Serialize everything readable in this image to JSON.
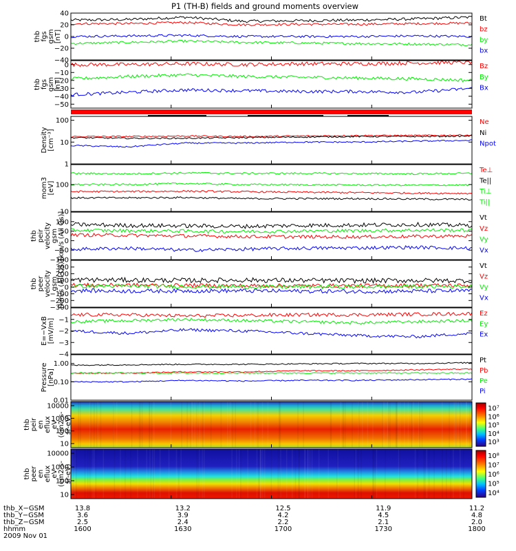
{
  "title": "P1 (TH-B) fields and ground moments overview",
  "colors": {
    "black": "#000000",
    "red": "#ff0000",
    "green": "#00ee00",
    "blue": "#0000ff"
  },
  "chart_data": [
    {
      "type": "line",
      "ylabel": [
        "thb",
        "fgs",
        "gsm",
        "[nT]"
      ],
      "ylim": [
        -40,
        40
      ],
      "yticks": [
        "40",
        "20",
        "0",
        "−20",
        "−40"
      ],
      "ytick_values": [
        40,
        20,
        0,
        -20,
        -40
      ],
      "series": [
        {
          "name": "Bt",
          "values": [
            28,
            29,
            33,
            26,
            27,
            28,
            30,
            33
          ]
        },
        {
          "name": "bz",
          "values": [
            22,
            22,
            24,
            20,
            21,
            21,
            22,
            23
          ]
        },
        {
          "name": "by",
          "values": [
            -12,
            -10,
            -8,
            -10,
            -11,
            -12,
            -13,
            -14
          ]
        },
        {
          "name": "bx",
          "values": [
            0,
            1,
            2,
            0,
            0,
            0,
            1,
            0
          ]
        }
      ]
    },
    {
      "type": "line",
      "ylabel": [
        "thb",
        "fgs",
        "gsm",
        "[nT]"
      ],
      "ylim": [
        -55,
        5
      ],
      "yticks": [
        "0",
        "−10",
        "−20",
        "−30",
        "−40",
        "−50"
      ],
      "ytick_values": [
        0,
        -10,
        -20,
        -30,
        -40,
        -50
      ],
      "series": [
        {
          "name": "Bz",
          "values": [
            0,
            0,
            1,
            0,
            1,
            1,
            2,
            3
          ]
        },
        {
          "name": "By",
          "values": [
            -18,
            -15,
            -13,
            -15,
            -16,
            -17,
            -18,
            -20
          ]
        },
        {
          "name": "Bx",
          "values": [
            -38,
            -35,
            -32,
            -33,
            -34,
            -34,
            -35,
            -30
          ]
        }
      ]
    },
    {
      "type": "line",
      "log": true,
      "ylabel": [
        "Density",
        "[cm⁻³]"
      ],
      "ylim": [
        1,
        150
      ],
      "yticks": [
        "100",
        "10",
        "1"
      ],
      "ytick_values": [
        100,
        10,
        1
      ],
      "series": [
        {
          "name": "Ne",
          "values": [
            18,
            18,
            19,
            18,
            19,
            20,
            20,
            21
          ]
        },
        {
          "name": "Ni",
          "values": [
            16,
            15,
            15,
            16,
            17,
            18,
            18,
            19
          ]
        },
        {
          "name": "Npot",
          "values": [
            7,
            6,
            9,
            9,
            10,
            10,
            11,
            12
          ]
        }
      ]
    },
    {
      "type": "line",
      "log": true,
      "ylabel": [
        "mom3",
        "[eV]"
      ],
      "ylim": [
        10,
        550
      ],
      "yticks": [
        "100",
        "10"
      ],
      "ytick_values": [
        100,
        10
      ],
      "series": [
        {
          "name": "Te⊥",
          "values": [
            55,
            55,
            57,
            54,
            52,
            50,
            48,
            47
          ]
        },
        {
          "name": "Te||",
          "values": [
            32,
            32,
            33,
            30,
            30,
            30,
            29,
            28
          ]
        },
        {
          "name": "Ti⊥",
          "values": [
            260,
            250,
            270,
            260,
            260,
            255,
            250,
            260
          ]
        },
        {
          "name": "Ti||",
          "values": [
            100,
            100,
            110,
            100,
            98,
            96,
            95,
            96
          ]
        }
      ]
    },
    {
      "type": "line",
      "ylabel": [
        "thb",
        "peir",
        "velocity",
        "gsm",
        "[km/s (All Qs)]"
      ],
      "ylim": [
        -100,
        150
      ],
      "yticks": [
        "100",
        "50",
        "0",
        "−50",
        "−100"
      ],
      "ytick_values": [
        100,
        50,
        0,
        -50,
        -100
      ],
      "series": [
        {
          "name": "Vt",
          "values": [
            85,
            80,
            78,
            75,
            80,
            82,
            85,
            80
          ]
        },
        {
          "name": "Vz",
          "values": [
            30,
            28,
            25,
            22,
            20,
            20,
            22,
            25
          ]
        },
        {
          "name": "Vy",
          "values": [
            55,
            52,
            50,
            48,
            50,
            52,
            55,
            55
          ]
        },
        {
          "name": "Vx",
          "values": [
            -45,
            -40,
            -50,
            -45,
            -40,
            -38,
            -35,
            -40
          ]
        }
      ]
    },
    {
      "type": "line",
      "ylabel": [
        "thb",
        "peer",
        "velocity",
        "gsm",
        "[km/s (All Qs)]"
      ],
      "ylim": [
        -300,
        400
      ],
      "yticks": [
        "300",
        "200",
        "100",
        "0",
        "−100",
        "−200",
        "−300"
      ],
      "ytick_values": [
        300,
        200,
        100,
        0,
        -100,
        -200,
        -300
      ],
      "series": [
        {
          "name": "Vt",
          "values": [
            110,
            105,
            100,
            105,
            100,
            95,
            100,
            95
          ]
        },
        {
          "name": "Vz",
          "values": [
            30,
            30,
            25,
            20,
            20,
            20,
            25,
            25
          ]
        },
        {
          "name": "Vy",
          "values": [
            15,
            15,
            10,
            5,
            5,
            5,
            10,
            10
          ]
        },
        {
          "name": "Vx",
          "values": [
            -50,
            -60,
            -55,
            -55,
            -60,
            -65,
            -60,
            -55
          ]
        }
      ]
    },
    {
      "type": "line",
      "ylabel": [
        "E=−VxB",
        "[mV/m]"
      ],
      "ylim": [
        -4,
        0
      ],
      "yticks": [
        "−1",
        "−2",
        "−3",
        "−4"
      ],
      "ytick_values": [
        -1,
        -2,
        -3,
        -4
      ],
      "series": [
        {
          "name": "Ez",
          "values": [
            -0.6,
            -0.6,
            -0.7,
            -0.65,
            -0.6,
            -0.6,
            -0.55,
            -0.5
          ]
        },
        {
          "name": "Ey",
          "values": [
            -1.2,
            -1.1,
            -1.0,
            -1.1,
            -1.2,
            -1.3,
            -1.2,
            -1.1
          ]
        },
        {
          "name": "Ex",
          "values": [
            -2.0,
            -2.2,
            -1.9,
            -2.0,
            -2.2,
            -2.4,
            -2.5,
            -2.2
          ]
        }
      ]
    },
    {
      "type": "line",
      "log": true,
      "ylabel": [
        "Pressure",
        "[nPa]"
      ],
      "ylim": [
        0.01,
        3
      ],
      "yticks": [
        "1.00",
        "0.10",
        "0.01"
      ],
      "ytick_values": [
        1,
        0.1,
        0.01
      ],
      "series": [
        {
          "name": "Pt",
          "values": [
            0.8,
            0.85,
            0.9,
            0.9,
            0.95,
            1.0,
            1.0,
            1.1
          ]
        },
        {
          "name": "Pb",
          "values": [
            0.3,
            0.3,
            0.35,
            0.35,
            0.4,
            0.4,
            0.45,
            0.5
          ]
        },
        {
          "name": "Pe",
          "values": [
            0.3,
            0.3,
            0.3,
            0.3,
            0.3,
            0.3,
            0.3,
            0.3
          ]
        },
        {
          "name": "Pi",
          "values": [
            0.1,
            0.1,
            0.12,
            0.11,
            0.12,
            0.12,
            0.13,
            0.14
          ]
        }
      ]
    },
    {
      "type": "heatmap",
      "ylabel": [
        "thb",
        "peir",
        "en",
        "eflux",
        "eV",
        "(cm2-s-",
        "sr-eV)"
      ],
      "yticks": [
        "10000",
        "1000",
        "100",
        "10"
      ],
      "colorbar": [
        "10⁷",
        "10⁶",
        "10⁵",
        "10⁴",
        "10³"
      ]
    },
    {
      "type": "heatmap",
      "ylabel": [
        "thb",
        "peer",
        "en",
        "eflux",
        "eV",
        "(cm2-s-",
        "sr-eV)"
      ],
      "yticks": [
        "10000",
        "1000",
        "100",
        "10"
      ],
      "colorbar": [
        "10⁸",
        "10⁷",
        "10⁶",
        "10⁵",
        "10⁴"
      ]
    }
  ],
  "xaxis": {
    "rows": [
      {
        "label": "thb_X−GSM",
        "values": [
          "13.8",
          "13.2",
          "12.5",
          "11.9",
          "11.2"
        ]
      },
      {
        "label": "thb_Y−GSM",
        "values": [
          "3.6",
          "3.9",
          "4.2",
          "4.5",
          "4.8"
        ]
      },
      {
        "label": "thb_Z−GSM",
        "values": [
          "2.5",
          "2.4",
          "2.2",
          "2.1",
          "2.0"
        ]
      },
      {
        "label": "hhmm",
        "values": [
          "1600",
          "1630",
          "1700",
          "1730",
          "1800"
        ]
      }
    ],
    "date": "2009 Nov 01"
  }
}
